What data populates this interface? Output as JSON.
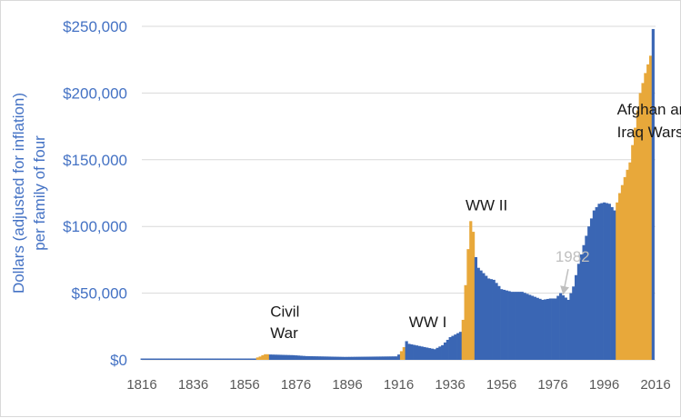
{
  "chart_data": {
    "type": "bar",
    "ylabel_line1": "Dollars (adjusted for inflation)",
    "ylabel_line2": "per family of four",
    "xlim": [
      1816,
      2016
    ],
    "ylim": [
      0,
      250000
    ],
    "y_ticks": [
      {
        "value": 0,
        "label": "$0"
      },
      {
        "value": 50000,
        "label": "$50,000"
      },
      {
        "value": 100000,
        "label": "$100,000"
      },
      {
        "value": 150000,
        "label": "$150,000"
      },
      {
        "value": 200000,
        "label": "$200,000"
      },
      {
        "value": 250000,
        "label": "$250,000"
      }
    ],
    "x_ticks": [
      {
        "value": 1816,
        "label": "1816"
      },
      {
        "value": 1836,
        "label": "1836"
      },
      {
        "value": 1856,
        "label": "1856"
      },
      {
        "value": 1876,
        "label": "1876"
      },
      {
        "value": 1896,
        "label": "1896"
      },
      {
        "value": 1916,
        "label": "1916"
      },
      {
        "value": 1936,
        "label": "1936"
      },
      {
        "value": 1956,
        "label": "1956"
      },
      {
        "value": 1976,
        "label": "1976"
      },
      {
        "value": 1996,
        "label": "1996"
      },
      {
        "value": 2016,
        "label": "2016"
      }
    ],
    "grid": true,
    "colors": {
      "peace": "#3a66b4",
      "war": "#e8a83a",
      "gridline": "#d9d9d9",
      "annotation_arrow": "#bfbfbf"
    },
    "war_periods": [
      {
        "start": 1861,
        "end": 1865
      },
      {
        "start": 1917,
        "end": 1918
      },
      {
        "start": 1941,
        "end": 1945
      },
      {
        "start": 2001,
        "end": 2014
      }
    ],
    "x": [],
    "values": [],
    "anchors": [
      [
        1816,
        1000
      ],
      [
        1860,
        1000
      ],
      [
        1861,
        1800
      ],
      [
        1862,
        2500
      ],
      [
        1863,
        3500
      ],
      [
        1864,
        4200
      ],
      [
        1865,
        4200
      ],
      [
        1866,
        4000
      ],
      [
        1875,
        3500
      ],
      [
        1880,
        2800
      ],
      [
        1895,
        2200
      ],
      [
        1910,
        2500
      ],
      [
        1915,
        2600
      ],
      [
        1916,
        4000
      ],
      [
        1917,
        6500
      ],
      [
        1918,
        9500
      ],
      [
        1919,
        14000
      ],
      [
        1920,
        12000
      ],
      [
        1925,
        10000
      ],
      [
        1930,
        8000
      ],
      [
        1933,
        11000
      ],
      [
        1936,
        17000
      ],
      [
        1939,
        20000
      ],
      [
        1940,
        21000
      ],
      [
        1941,
        30000
      ],
      [
        1942,
        56000
      ],
      [
        1943,
        83000
      ],
      [
        1944,
        104000
      ],
      [
        1945,
        96000
      ],
      [
        1946,
        77000
      ],
      [
        1947,
        69000
      ],
      [
        1949,
        65000
      ],
      [
        1951,
        61000
      ],
      [
        1953,
        60000
      ],
      [
        1956,
        53000
      ],
      [
        1960,
        51000
      ],
      [
        1964,
        51000
      ],
      [
        1968,
        48000
      ],
      [
        1972,
        45000
      ],
      [
        1975,
        46000
      ],
      [
        1977,
        46000
      ],
      [
        1979,
        50000
      ],
      [
        1982,
        45000
      ],
      [
        1984,
        55000
      ],
      [
        1986,
        72000
      ],
      [
        1988,
        86000
      ],
      [
        1990,
        100000
      ],
      [
        1992,
        112000
      ],
      [
        1994,
        117000
      ],
      [
        1996,
        118000
      ],
      [
        1998,
        117000
      ],
      [
        2000,
        112000
      ],
      [
        2001,
        118000
      ],
      [
        2002,
        125000
      ],
      [
        2004,
        137000
      ],
      [
        2006,
        148000
      ],
      [
        2008,
        174000
      ],
      [
        2010,
        200000
      ],
      [
        2012,
        215000
      ],
      [
        2014,
        228000
      ],
      [
        2015,
        248000
      ]
    ],
    "annotations": [
      {
        "label": "Civil",
        "x": 1866,
        "y": 32500,
        "style": "dark"
      },
      {
        "label": "War",
        "x": 1866,
        "y": 16500,
        "style": "dark"
      },
      {
        "label": "WW I",
        "x": 1920,
        "y": 24500,
        "style": "dark"
      },
      {
        "label": "WW II",
        "x": 1942,
        "y": 112000,
        "style": "dark"
      },
      {
        "label": "Afghan and",
        "x": 2001,
        "y": 184000,
        "style": "dark"
      },
      {
        "label": "Iraq Wars",
        "x": 2001,
        "y": 167000,
        "style": "dark"
      },
      {
        "label": "1982",
        "x": 1977,
        "y": 73500,
        "style": "gray"
      }
    ],
    "arrow_1982": {
      "from": [
        1982,
        68000
      ],
      "to": [
        1980,
        49000
      ]
    }
  }
}
